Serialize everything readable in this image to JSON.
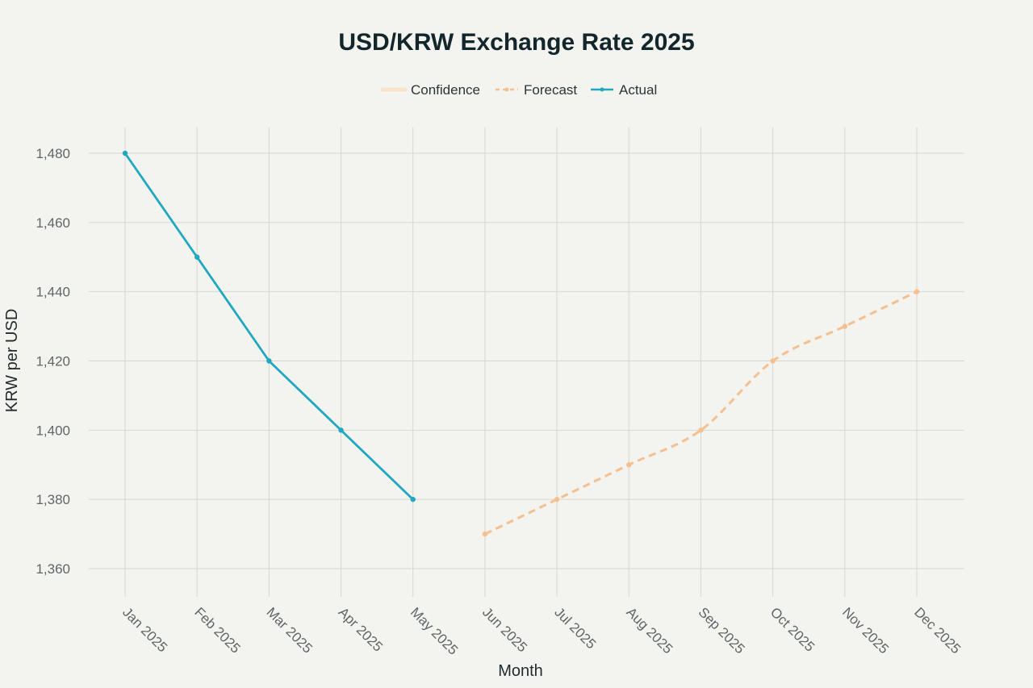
{
  "chart_data": {
    "type": "line",
    "title": "USD/KRW Exchange Rate 2025",
    "xlabel": "Month",
    "ylabel": "KRW per USD",
    "categories": [
      "Jan 2025",
      "Feb 2025",
      "Mar 2025",
      "Apr 2025",
      "May 2025",
      "Jun 2025",
      "Jul 2025",
      "Aug 2025",
      "Sep 2025",
      "Oct 2025",
      "Nov 2025",
      "Dec 2025"
    ],
    "ylim": [
      1350,
      1485
    ],
    "yticks": [
      1360,
      1380,
      1400,
      1420,
      1440,
      1460,
      1480
    ],
    "ytick_labels": [
      "1,360",
      "1,380",
      "1,400",
      "1,420",
      "1,440",
      "1,460",
      "1,480"
    ],
    "grid": true,
    "legend_position": "top-center",
    "legend": [
      "Confidence",
      "Forecast",
      "Actual"
    ],
    "series": [
      {
        "name": "Actual",
        "style": "solid",
        "color": "#1fa8c0",
        "x": [
          "Jan 2025",
          "Feb 2025",
          "Mar 2025",
          "Apr 2025",
          "May 2025"
        ],
        "values": [
          1480,
          1450,
          1420,
          1400,
          1380
        ]
      },
      {
        "name": "Forecast",
        "style": "dashed",
        "color": "#f5bf8f",
        "x": [
          "Jun 2025",
          "Jul 2025",
          "Aug 2025",
          "Sep 2025",
          "Oct 2025",
          "Nov 2025",
          "Dec 2025"
        ],
        "values": [
          1370,
          1380,
          1390,
          1400,
          1420,
          1430,
          1440
        ]
      },
      {
        "name": "Confidence",
        "style": "band",
        "color": "#fbe2cc",
        "x": [],
        "values": []
      }
    ]
  }
}
